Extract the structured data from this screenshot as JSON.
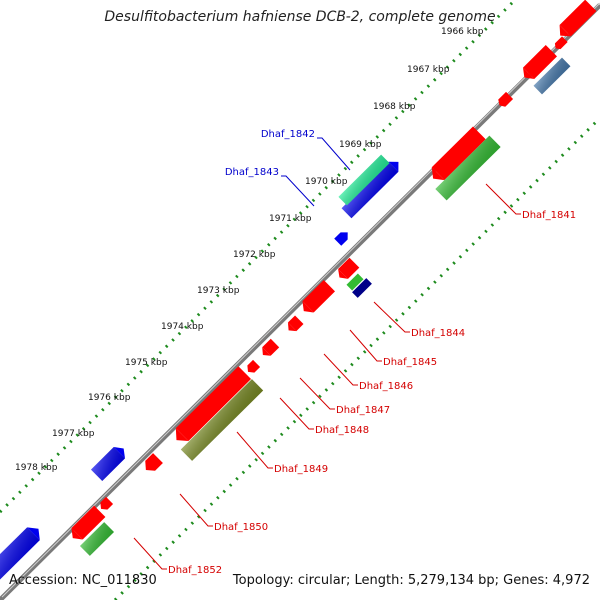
{
  "title": "Desulfitobacterium hafniense DCB-2, complete genome",
  "footer": {
    "accession": "Accession: NC_011830",
    "summary": "Topology: circular; Length: 5,279,134 bp; Genes: 4,972"
  },
  "colors": {
    "backbone": "#7a7a7a",
    "tick_dots": "#1e8b1e",
    "label_red": "#d40000",
    "label_blue": "#0000cc",
    "gene_red": "#ff0000",
    "gene_blue": "#0000ee",
    "gene_mint": "#22dd88",
    "gene_green": "#33bb33",
    "gene_olive": "#778822",
    "gene_steel": "#4477aa",
    "gene_navy": "#000088"
  },
  "kbp_labels": [
    "1966 kbp",
    "1967 kbp",
    "1968 kbp",
    "1969 kbp",
    "1970 kbp",
    "1971 kbp",
    "1972 kbp",
    "1973 kbp",
    "1974 kbp",
    "1975 kbp",
    "1976 kbp",
    "1977 kbp",
    "1978 kbp"
  ],
  "gene_labels": {
    "left": [
      "Dhaf_1842",
      "Dhaf_1843"
    ],
    "right": [
      "Dhaf_1841",
      "Dhaf_1844",
      "Dhaf_1845",
      "Dhaf_1846",
      "Dhaf_1847",
      "Dhaf_1848",
      "Dhaf_1849",
      "Dhaf_1850",
      "Dhaf_1852"
    ]
  }
}
